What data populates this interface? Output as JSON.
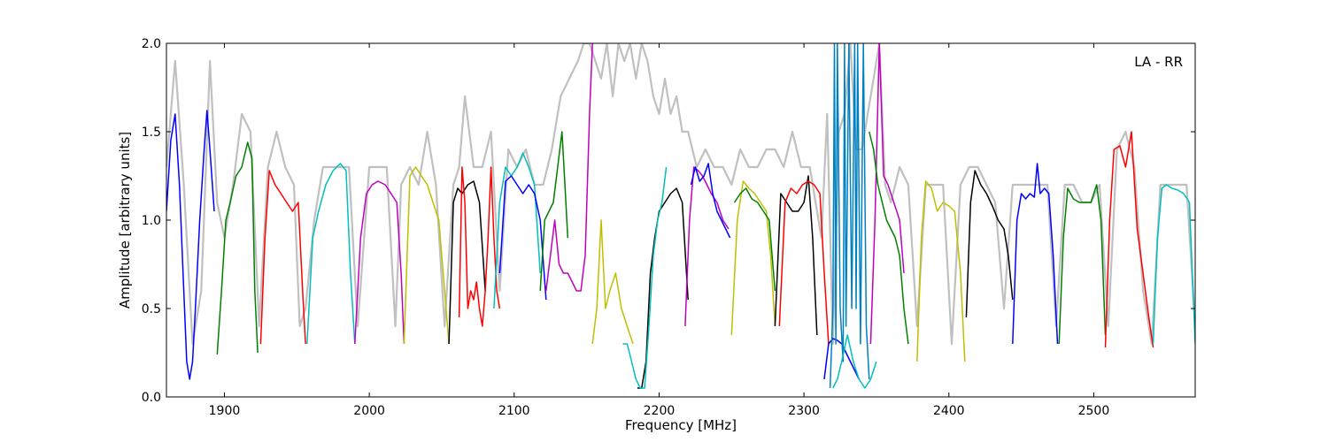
{
  "chart_data": {
    "type": "line",
    "title": "",
    "xlabel": "Frequency [MHz]",
    "ylabel": "Amplitude [arbitrary units]",
    "annotation": "LA - RR",
    "xlim": [
      1860,
      2570
    ],
    "ylim": [
      0.0,
      2.0
    ],
    "xticks": [
      1900,
      2000,
      2100,
      2200,
      2300,
      2400,
      2500
    ],
    "xtick_labels": [
      "1900",
      "2000",
      "2100",
      "2200",
      "2300",
      "2400",
      "2500"
    ],
    "yticks": [
      0.0,
      0.5,
      1.0,
      1.5,
      2.0
    ],
    "ytick_labels": [
      "0.0",
      "0.5",
      "1.0",
      "1.5",
      "2.0"
    ],
    "grid": false,
    "background_series": {
      "color": "#c0c0c0",
      "x": [
        1860,
        1866,
        1872,
        1878,
        1884,
        1890,
        1895,
        1900,
        1906,
        1912,
        1918,
        1924,
        1930,
        1936,
        1942,
        1948,
        1952,
        1956,
        1962,
        1968,
        1974,
        1980,
        1986,
        1992,
        2000,
        2006,
        2012,
        2018,
        2022,
        2028,
        2034,
        2040,
        2046,
        2052,
        2058,
        2062,
        2066,
        2072,
        2078,
        2084,
        2090,
        2096,
        2102,
        2108,
        2114,
        2120,
        2126,
        2132,
        2138,
        2144,
        2148,
        2152,
        2156,
        2160,
        2164,
        2168,
        2172,
        2176,
        2180,
        2184,
        2188,
        2192,
        2196,
        2200,
        2204,
        2208,
        2212,
        2216,
        2220,
        2226,
        2232,
        2238,
        2244,
        2250,
        2256,
        2262,
        2268,
        2274,
        2280,
        2286,
        2292,
        2298,
        2304,
        2308,
        2312,
        2316,
        2320,
        2324,
        2328,
        2332,
        2336,
        2340,
        2344,
        2348,
        2352,
        2356,
        2360,
        2366,
        2372,
        2378,
        2384,
        2390,
        2396,
        2402,
        2408,
        2414,
        2420,
        2426,
        2432,
        2438,
        2444,
        2450,
        2456,
        2462,
        2468,
        2474,
        2480,
        2486,
        2492,
        2498,
        2504,
        2510,
        2516,
        2522,
        2528,
        2534,
        2540,
        2546,
        2552,
        2558,
        2564,
        2570
      ],
      "y": [
        1.3,
        1.9,
        1.2,
        0.3,
        0.6,
        1.9,
        1.1,
        0.9,
        1.2,
        1.6,
        1.5,
        0.4,
        1.3,
        1.5,
        1.3,
        1.2,
        0.4,
        0.5,
        1.0,
        1.3,
        1.3,
        1.3,
        1.3,
        0.4,
        1.3,
        1.3,
        1.3,
        0.4,
        1.2,
        1.3,
        1.2,
        1.5,
        1.2,
        0.4,
        1.2,
        1.3,
        1.7,
        1.3,
        1.3,
        1.5,
        0.6,
        1.4,
        1.3,
        1.4,
        1.2,
        1.2,
        1.4,
        1.7,
        1.8,
        1.9,
        2.0,
        2.0,
        1.9,
        1.8,
        2.0,
        1.7,
        2.0,
        1.9,
        2.0,
        1.8,
        2.0,
        1.9,
        1.7,
        1.6,
        1.8,
        1.6,
        1.7,
        1.5,
        1.5,
        1.3,
        1.4,
        1.3,
        1.3,
        1.2,
        1.4,
        1.3,
        1.3,
        1.4,
        1.4,
        1.3,
        1.5,
        1.3,
        1.3,
        1.1,
        0.9,
        1.6,
        0.3,
        1.5,
        1.6,
        2.0,
        1.4,
        1.4,
        1.6,
        1.8,
        2.0,
        1.2,
        1.1,
        1.3,
        1.2,
        0.4,
        1.2,
        1.2,
        1.2,
        0.3,
        1.2,
        1.3,
        1.3,
        1.2,
        1.1,
        0.5,
        1.2,
        1.2,
        1.2,
        1.2,
        1.2,
        0.4,
        1.2,
        1.2,
        1.1,
        1.1,
        1.2,
        0.4,
        1.4,
        1.5,
        1.3,
        0.6,
        0.3,
        1.2,
        1.2,
        1.2,
        1.2,
        0.4
      ]
    },
    "series": [
      {
        "color": "#0000ff",
        "x": [
          1860,
          1863,
          1866,
          1869,
          1872,
          1874,
          1876,
          1878,
          1880,
          1883,
          1886,
          1888,
          1890,
          1893
        ],
        "y": [
          1.05,
          1.45,
          1.6,
          1.2,
          0.6,
          0.2,
          0.1,
          0.2,
          0.5,
          1.0,
          1.4,
          1.62,
          1.4,
          1.05
        ]
      },
      {
        "color": "#008000",
        "x": [
          1895,
          1898,
          1901,
          1904,
          1908,
          1912,
          1916,
          1919,
          1921,
          1923
        ],
        "y": [
          0.24,
          0.6,
          1.0,
          1.1,
          1.25,
          1.3,
          1.44,
          1.35,
          0.6,
          0.25
        ]
      },
      {
        "color": "#ff0000",
        "x": [
          1925,
          1928,
          1931,
          1935,
          1939,
          1943,
          1947,
          1951,
          1954,
          1956
        ],
        "y": [
          0.3,
          0.9,
          1.28,
          1.2,
          1.15,
          1.1,
          1.05,
          1.1,
          0.6,
          0.3
        ]
      },
      {
        "color": "#00bfbf",
        "x": [
          1957,
          1961,
          1965,
          1970,
          1975,
          1980,
          1984,
          1987,
          1990
        ],
        "y": [
          0.3,
          0.9,
          1.05,
          1.2,
          1.28,
          1.32,
          1.28,
          0.7,
          0.3
        ]
      },
      {
        "color": "#bf00bf",
        "x": [
          1990,
          1994,
          1998,
          2002,
          2006,
          2011,
          2015,
          2019,
          2022,
          2024
        ],
        "y": [
          0.3,
          0.9,
          1.15,
          1.2,
          1.22,
          1.2,
          1.15,
          1.1,
          0.7,
          0.3
        ]
      },
      {
        "color": "#bfbf00",
        "x": [
          2024,
          2028,
          2032,
          2036,
          2040,
          2044,
          2048,
          2052,
          2055
        ],
        "y": [
          0.3,
          1.25,
          1.3,
          1.25,
          1.2,
          1.1,
          1.0,
          0.6,
          0.3
        ]
      },
      {
        "color": "#000000",
        "x": [
          2055,
          2058,
          2061,
          2064,
          2068,
          2072,
          2076,
          2080
        ],
        "y": [
          0.3,
          1.1,
          1.18,
          1.15,
          1.2,
          1.22,
          1.1,
          0.6
        ]
      },
      {
        "color": "#ff0000",
        "x": [
          2062,
          2064,
          2066,
          2068,
          2070,
          2072,
          2074,
          2076,
          2078,
          2080,
          2082,
          2084,
          2086,
          2088,
          2090
        ],
        "y": [
          0.45,
          1.3,
          1.1,
          0.5,
          0.6,
          0.55,
          0.65,
          0.5,
          0.4,
          0.6,
          0.9,
          1.3,
          0.9,
          0.6,
          0.5
        ]
      },
      {
        "color": "#00bfbf",
        "x": [
          2086,
          2090,
          2094,
          2098,
          2102,
          2106,
          2110,
          2114,
          2118
        ],
        "y": [
          0.5,
          1.1,
          1.3,
          1.25,
          1.3,
          1.38,
          1.3,
          1.2,
          0.7
        ]
      },
      {
        "color": "#0000ff",
        "x": [
          2090,
          2094,
          2098,
          2102,
          2106,
          2110,
          2114,
          2118,
          2122
        ],
        "y": [
          0.7,
          1.22,
          1.25,
          1.2,
          1.15,
          1.2,
          1.15,
          1.0,
          0.55
        ]
      },
      {
        "color": "#008000",
        "x": [
          2118,
          2121,
          2124,
          2127,
          2130,
          2133,
          2135,
          2137
        ],
        "y": [
          0.6,
          1.0,
          1.05,
          1.1,
          1.3,
          1.5,
          1.2,
          0.9
        ]
      },
      {
        "color": "#bf00bf",
        "x": [
          2122,
          2125,
          2128,
          2131,
          2134,
          2137,
          2140,
          2143,
          2146,
          2149,
          2152,
          2154
        ],
        "y": [
          0.6,
          0.8,
          1.0,
          0.75,
          0.7,
          0.7,
          0.65,
          0.6,
          0.6,
          0.8,
          1.6,
          2.0
        ]
      },
      {
        "color": "#bfbf00",
        "x": [
          2154,
          2157,
          2160,
          2163,
          2166,
          2170,
          2174,
          2178,
          2182
        ],
        "y": [
          0.3,
          0.5,
          1.0,
          0.5,
          0.6,
          0.7,
          0.5,
          0.4,
          0.3
        ]
      },
      {
        "color": "#000000",
        "x": [
          2185,
          2188,
          2191,
          2194,
          2197,
          2200,
          2204,
          2208,
          2212,
          2216,
          2220
        ],
        "y": [
          0.05,
          0.05,
          0.2,
          0.7,
          0.9,
          1.05,
          1.1,
          1.15,
          1.18,
          1.1,
          0.55
        ]
      },
      {
        "color": "#00bfbf",
        "x": [
          2175,
          2178,
          2181,
          2184,
          2187,
          2190,
          2193,
          2196,
          2199,
          2202,
          2205
        ],
        "y": [
          0.3,
          0.3,
          0.2,
          0.1,
          0.05,
          0.05,
          0.4,
          0.8,
          1.0,
          1.1,
          1.3
        ]
      },
      {
        "color": "#bf00bf",
        "x": [
          2218,
          2221,
          2224,
          2227,
          2230,
          2233,
          2236,
          2240,
          2244,
          2248
        ],
        "y": [
          0.4,
          1.0,
          1.3,
          1.28,
          1.25,
          1.2,
          1.15,
          1.1,
          1.0,
          0.95
        ]
      },
      {
        "color": "#0000ff",
        "x": [
          2222,
          2225,
          2228,
          2231,
          2234,
          2237,
          2240,
          2243,
          2246,
          2249
        ],
        "y": [
          1.2,
          1.3,
          1.22,
          1.25,
          1.32,
          1.15,
          1.05,
          1.0,
          0.95,
          0.9
        ]
      },
      {
        "color": "#bfbf00",
        "x": [
          2250,
          2254,
          2258,
          2262,
          2266,
          2270,
          2274,
          2277,
          2280
        ],
        "y": [
          0.35,
          1.0,
          1.22,
          1.18,
          1.15,
          1.1,
          1.05,
          0.8,
          0.4
        ]
      },
      {
        "color": "#008000",
        "x": [
          2252,
          2256,
          2260,
          2264,
          2268,
          2272,
          2276,
          2280
        ],
        "y": [
          1.1,
          1.15,
          1.18,
          1.12,
          1.1,
          1.05,
          1.0,
          0.6
        ]
      },
      {
        "color": "#000000",
        "x": [
          2280,
          2284,
          2288,
          2292,
          2296,
          2300,
          2303,
          2306,
          2309
        ],
        "y": [
          0.4,
          1.15,
          1.1,
          1.05,
          1.05,
          1.1,
          1.25,
          0.9,
          0.35
        ]
      },
      {
        "color": "#ff0000",
        "x": [
          2283,
          2287,
          2291,
          2295,
          2299,
          2303,
          2307,
          2311,
          2314,
          2317
        ],
        "y": [
          0.4,
          1.1,
          1.18,
          1.15,
          1.2,
          1.22,
          1.2,
          1.15,
          0.7,
          0.3
        ]
      },
      {
        "color": "#0000ff",
        "x": [
          2314,
          2317,
          2320,
          2323,
          2326,
          2329,
          2332,
          2335,
          2338
        ],
        "y": [
          0.1,
          0.3,
          0.33,
          0.32,
          0.3,
          0.25,
          0.2,
          0.15,
          0.1
        ]
      },
      {
        "color": "#0080c0",
        "x": [
          2318,
          2320,
          2321,
          2322,
          2323,
          2325,
          2327,
          2328,
          2329,
          2331,
          2333,
          2335,
          2336,
          2337,
          2339,
          2341,
          2343,
          2345
        ],
        "y": [
          0.05,
          0.5,
          2.0,
          0.3,
          2.0,
          0.5,
          0.2,
          2.0,
          0.4,
          2.0,
          0.5,
          2.0,
          0.5,
          2.0,
          0.3,
          2.0,
          0.4,
          0.1
        ]
      },
      {
        "color": "#00bfbf",
        "x": [
          2320,
          2323,
          2326,
          2330,
          2334,
          2338,
          2342,
          2346,
          2350
        ],
        "y": [
          0.05,
          0.1,
          0.2,
          0.35,
          0.2,
          0.1,
          0.05,
          0.1,
          0.2
        ]
      },
      {
        "color": "#bf00bf",
        "x": [
          2346,
          2349,
          2352,
          2355,
          2358,
          2362,
          2366,
          2369
        ],
        "y": [
          0.3,
          1.0,
          2.0,
          1.25,
          1.2,
          1.1,
          1.0,
          0.7
        ]
      },
      {
        "color": "#008000",
        "x": [
          2345,
          2348,
          2351,
          2354,
          2357,
          2360,
          2363,
          2366,
          2369,
          2372
        ],
        "y": [
          1.5,
          1.4,
          1.2,
          1.1,
          1.0,
          0.95,
          0.9,
          0.8,
          0.5,
          0.3
        ]
      },
      {
        "color": "#bfbf00",
        "x": [
          2378,
          2381,
          2384,
          2388,
          2392,
          2396,
          2400,
          2404,
          2408,
          2411
        ],
        "y": [
          0.2,
          0.9,
          1.22,
          1.18,
          1.05,
          1.1,
          1.08,
          1.05,
          0.7,
          0.2
        ]
      },
      {
        "color": "#000000",
        "x": [
          2412,
          2415,
          2418,
          2422,
          2426,
          2430,
          2434,
          2438,
          2441,
          2444
        ],
        "y": [
          0.45,
          1.1,
          1.28,
          1.2,
          1.15,
          1.08,
          1.0,
          0.95,
          0.8,
          0.55
        ]
      },
      {
        "color": "#0000ff",
        "x": [
          2444,
          2447,
          2450,
          2453,
          2456,
          2459,
          2461,
          2463,
          2466,
          2469,
          2472,
          2475
        ],
        "y": [
          0.3,
          1.0,
          1.15,
          1.12,
          1.15,
          1.13,
          1.32,
          1.15,
          1.18,
          1.15,
          0.8,
          0.3
        ]
      },
      {
        "color": "#008000",
        "x": [
          2476,
          2479,
          2482,
          2486,
          2490,
          2494,
          2498,
          2502,
          2505,
          2508
        ],
        "y": [
          0.3,
          0.9,
          1.18,
          1.12,
          1.1,
          1.1,
          1.1,
          1.2,
          1.0,
          0.35
        ]
      },
      {
        "color": "#ff0000",
        "x": [
          2508,
          2511,
          2514,
          2518,
          2522,
          2526,
          2530,
          2534,
          2538,
          2541
        ],
        "y": [
          0.28,
          1.0,
          1.4,
          1.42,
          1.3,
          1.5,
          0.95,
          0.7,
          0.45,
          0.28
        ]
      },
      {
        "color": "#00bfbf",
        "x": [
          2541,
          2544,
          2547,
          2550,
          2554,
          2558,
          2562,
          2566,
          2570
        ],
        "y": [
          0.3,
          0.9,
          1.18,
          1.2,
          1.18,
          1.17,
          1.15,
          1.1,
          0.3
        ]
      }
    ]
  }
}
